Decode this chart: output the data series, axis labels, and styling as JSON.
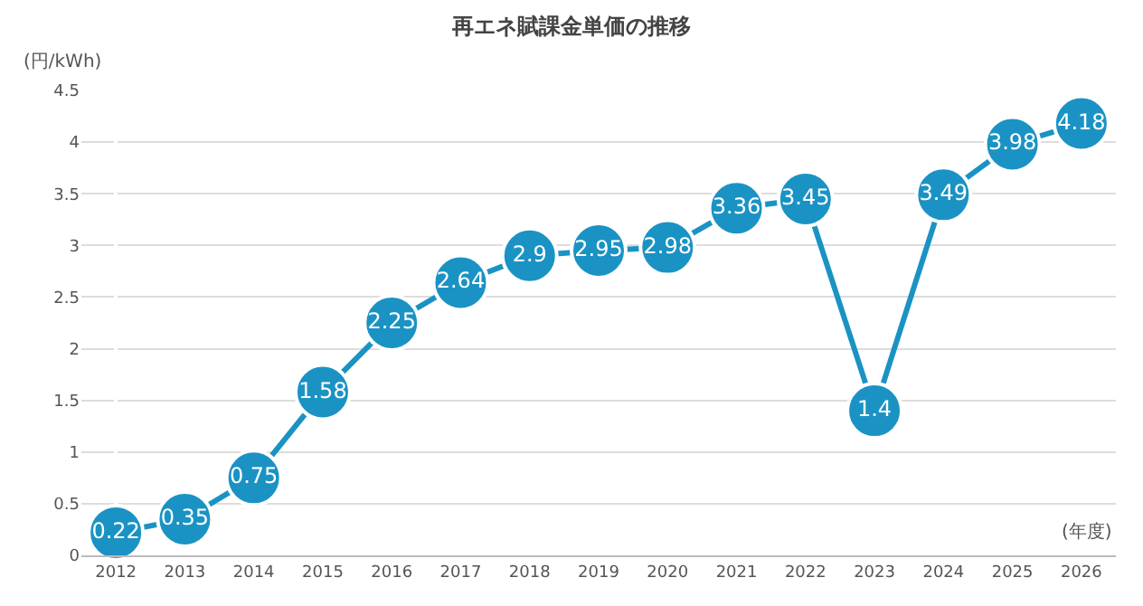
{
  "chart_data": {
    "type": "line",
    "title": "再エネ賦課金単価の推移",
    "ylabel": "(円/kWh)",
    "xlabel": "(年度)",
    "categories": [
      "2012",
      "2013",
      "2014",
      "2015",
      "2016",
      "2017",
      "2018",
      "2019",
      "2020",
      "2021",
      "2022",
      "2023",
      "2024",
      "2025",
      "2026"
    ],
    "series": [
      {
        "color": "#1a93c4",
        "values": [
          0.22,
          0.35,
          0.75,
          1.58,
          2.25,
          2.64,
          2.9,
          2.95,
          2.98,
          3.36,
          3.45,
          1.4,
          3.49,
          3.98,
          4.18
        ]
      }
    ],
    "ylim": [
      0,
      4.5
    ],
    "yticks": [
      0,
      0.5,
      1,
      1.5,
      2,
      2.5,
      3,
      3.5,
      4,
      4.5
    ],
    "data_labels": true,
    "grid": "y",
    "marker": "circle",
    "line_style": "solid"
  }
}
